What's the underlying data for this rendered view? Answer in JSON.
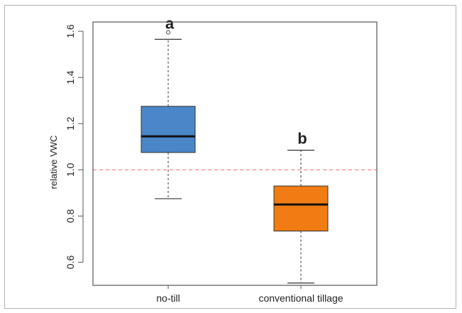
{
  "chart_data": {
    "type": "box",
    "title": "",
    "xlabel": "",
    "ylabel": "relative VWC",
    "ylim": [
      0.5,
      1.64
    ],
    "yticks": [
      "0.6",
      "0.8",
      "1.0",
      "1.2",
      "1.4",
      "1.6"
    ],
    "reference_line": {
      "y": 1.0,
      "style": "dashed",
      "color": "#ff8080"
    },
    "grid": false,
    "groups": [
      {
        "category": "no-till",
        "letter": "a",
        "color": "#4a86c8",
        "whisker_low": 0.875,
        "q1": 1.075,
        "median": 1.145,
        "q3": 1.275,
        "whisker_high": 1.565,
        "outliers": [
          1.595
        ]
      },
      {
        "category": "conventional tillage",
        "letter": "b",
        "color": "#f07c13",
        "whisker_low": 0.51,
        "q1": 0.735,
        "median": 0.85,
        "q3": 0.93,
        "whisker_high": 1.085,
        "outliers": []
      }
    ]
  }
}
